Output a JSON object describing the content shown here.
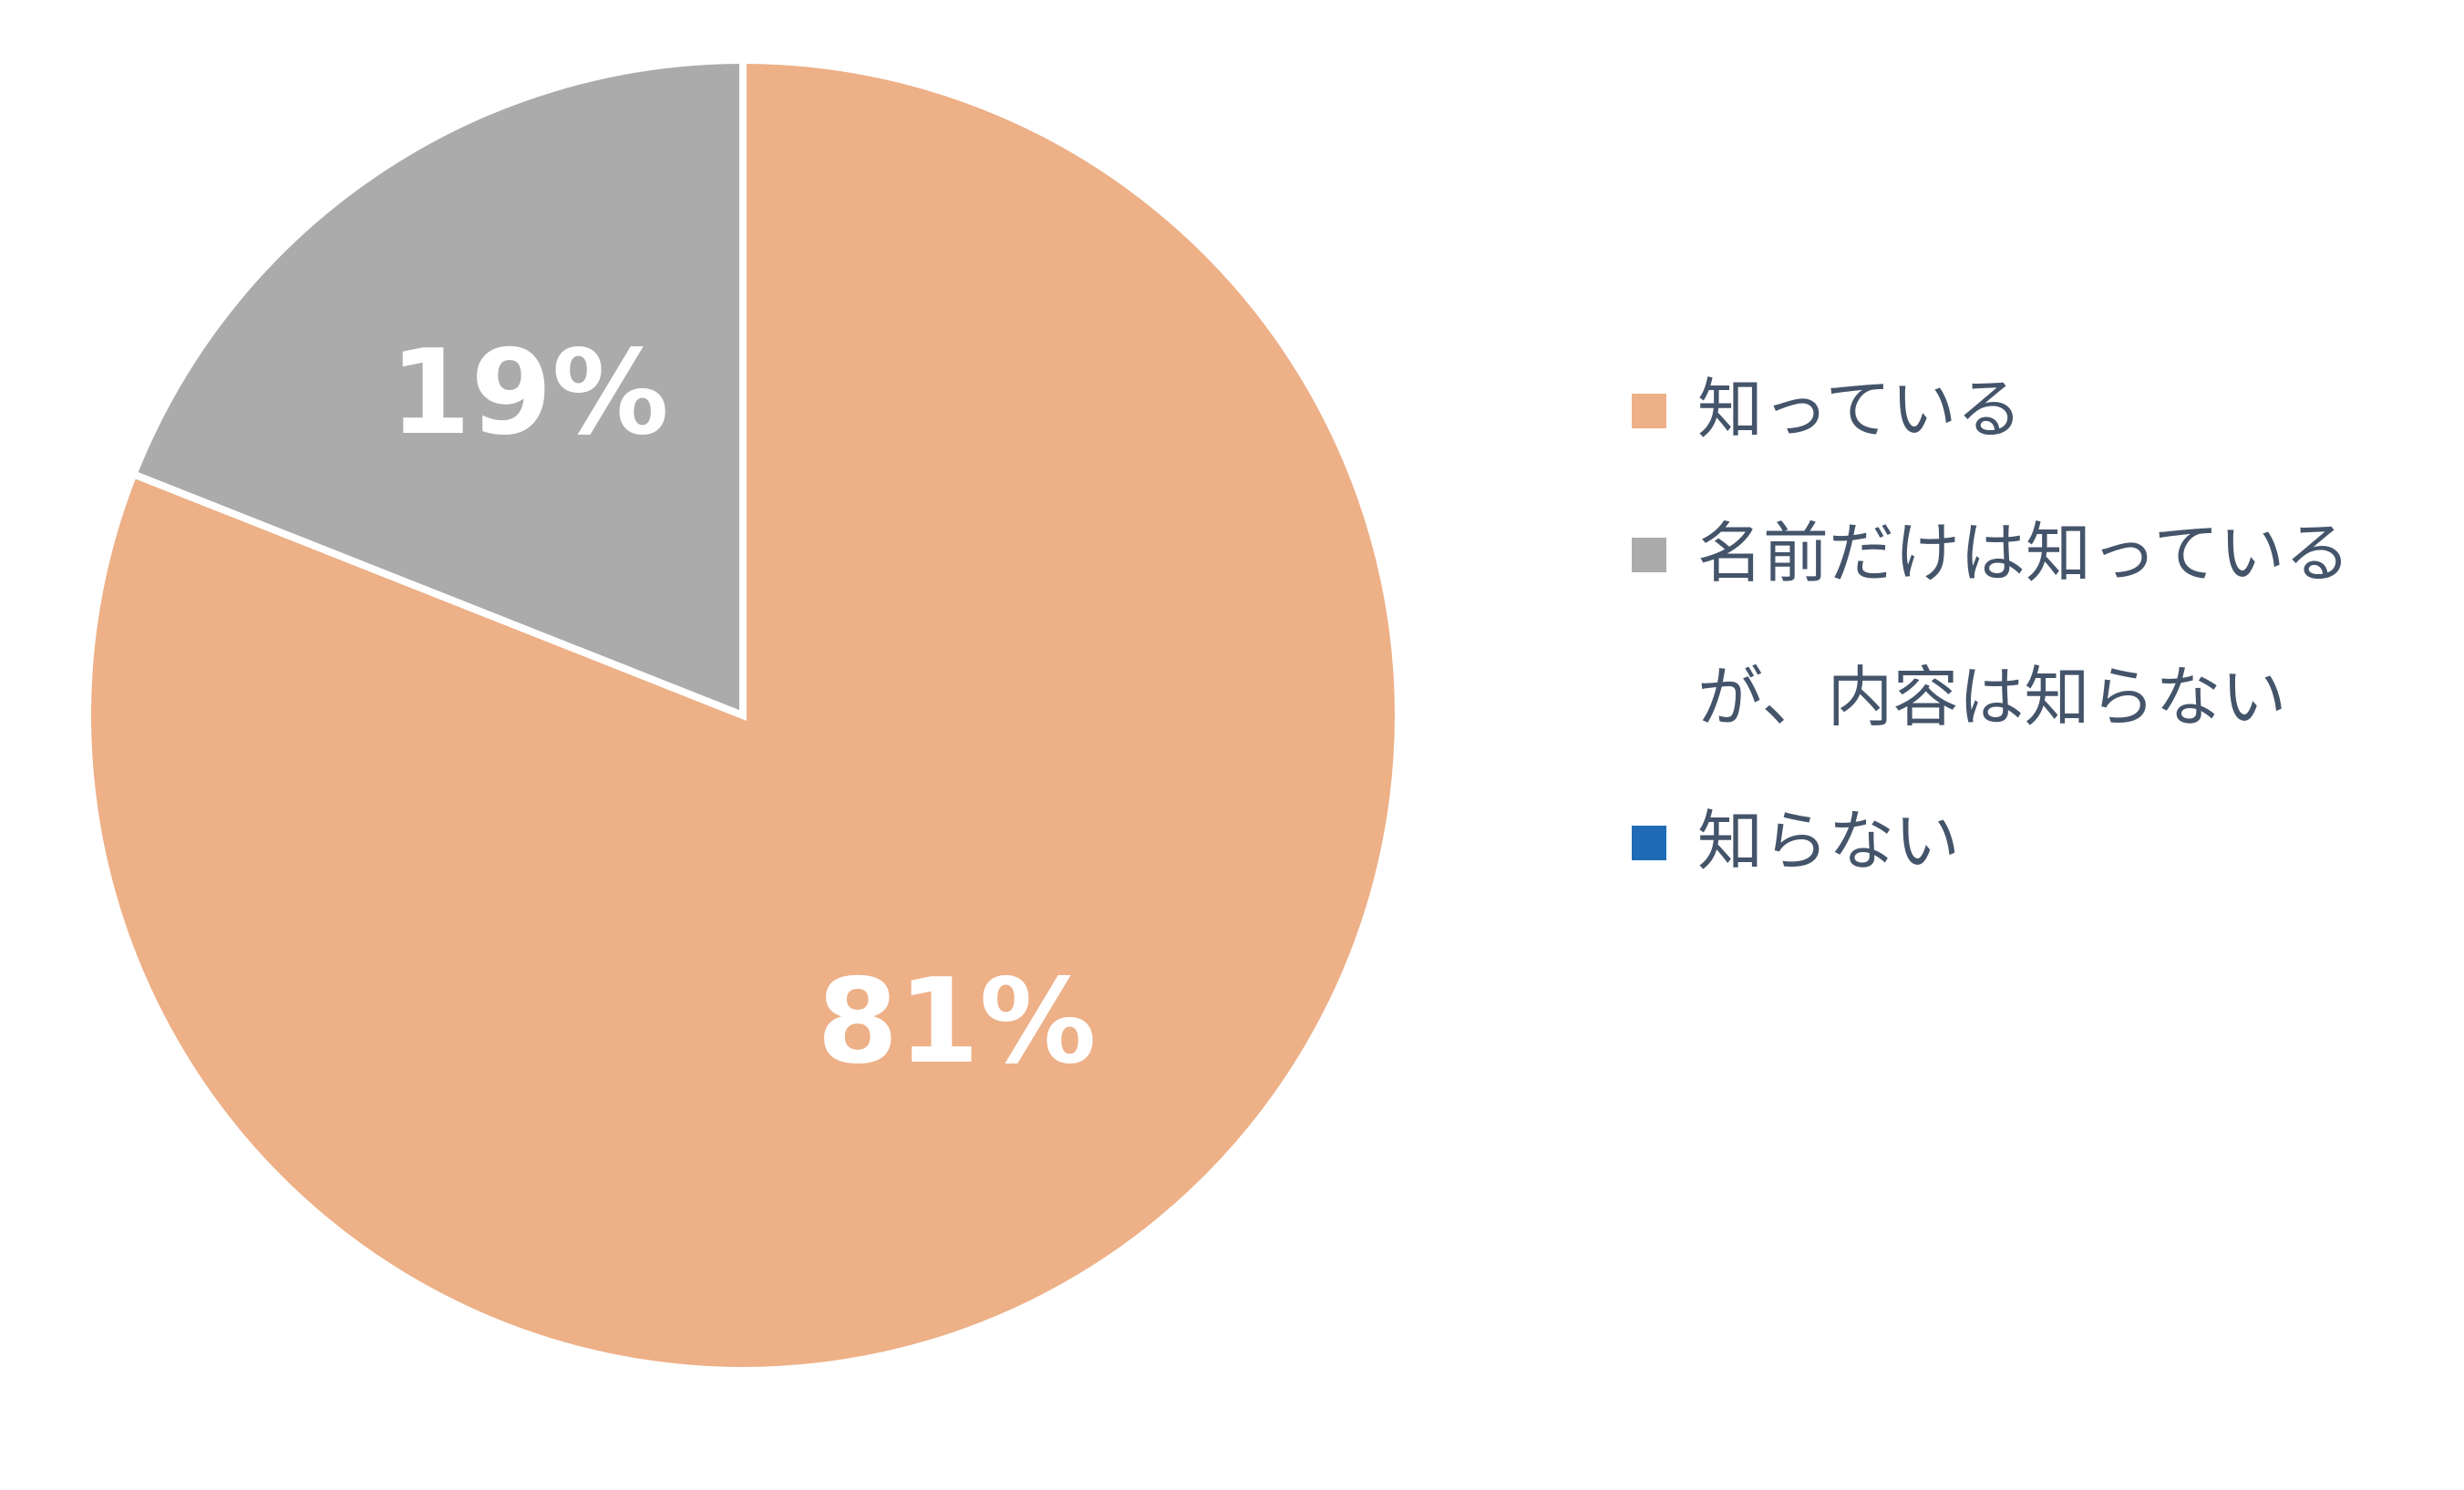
{
  "chart_data": {
    "type": "pie",
    "categories": [
      "知っている",
      "名前だけは知っているが、内容は知らない",
      "知らない"
    ],
    "values": [
      81,
      19,
      0
    ],
    "value_labels": [
      "81%",
      "19%",
      null
    ],
    "colors": [
      "#EDB087",
      "#ABABAB",
      "#1F6BB5"
    ],
    "legend": "right"
  }
}
